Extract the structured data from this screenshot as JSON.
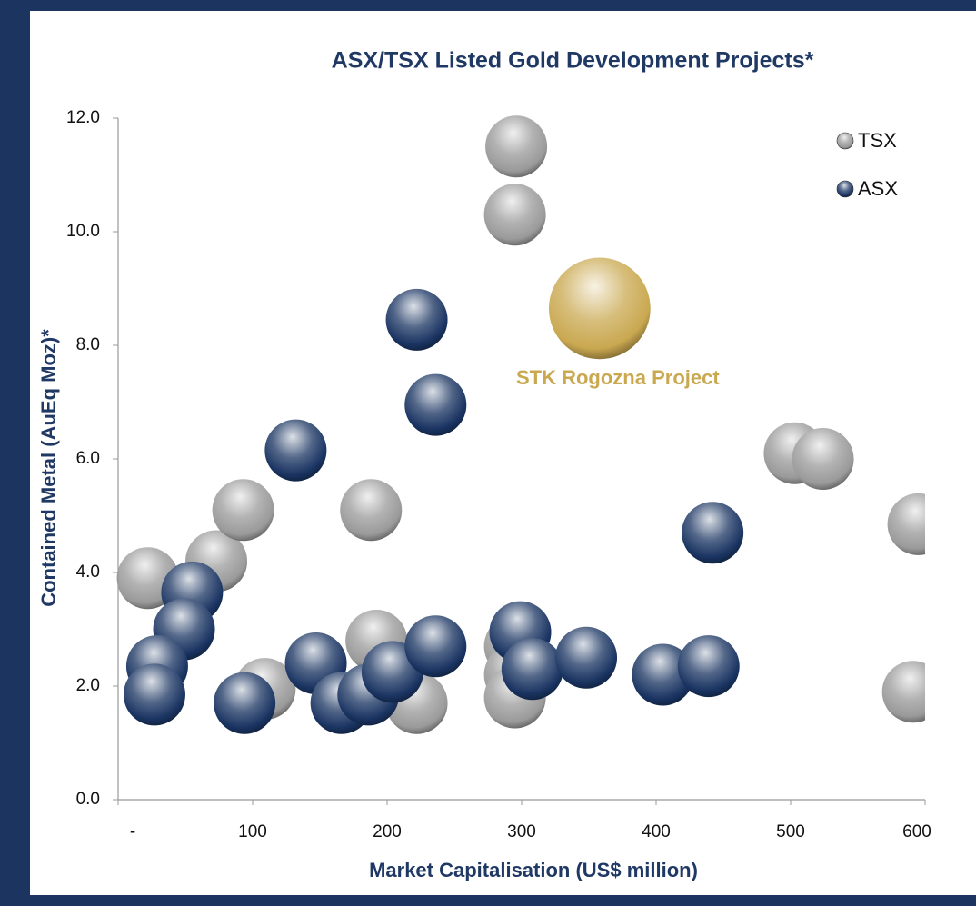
{
  "chart_data": {
    "type": "bubble",
    "title": "ASX/TSX Listed Gold Development Projects*",
    "x_label": "Market Capitalisation (US$ million)",
    "y_label": "Contained Metal (AuEq Moz)*",
    "xlim": [
      0,
      600
    ],
    "ylim": [
      0,
      12
    ],
    "xticks": [
      {
        "value": 0,
        "label": "-"
      },
      100,
      200,
      300,
      400,
      500,
      600
    ],
    "yticks": [
      {
        "value": 0,
        "label": "0.0"
      },
      {
        "value": 2,
        "label": "2.0"
      },
      {
        "value": 4,
        "label": "4.0"
      },
      {
        "value": 6,
        "label": "6.0"
      },
      {
        "value": 8,
        "label": "8.0"
      },
      {
        "value": 10,
        "label": "10.0"
      },
      {
        "value": 12,
        "label": "12.0"
      }
    ],
    "legend": "top-right",
    "series": [
      {
        "name": "TSX",
        "color": "#9a9a9a",
        "x": [
          296,
          295,
          22,
          73,
          93,
          188,
          192,
          109,
          222,
          295,
          295,
          295,
          503,
          524,
          595,
          591
        ],
        "values": [
          11.5,
          10.3,
          3.9,
          4.2,
          5.1,
          5.1,
          2.8,
          1.95,
          1.7,
          2.7,
          2.2,
          1.8,
          6.1,
          6.0,
          4.85,
          1.9
        ],
        "sizes": [
          1,
          1,
          1,
          1,
          1,
          1,
          1,
          1,
          1,
          1,
          1,
          1,
          1,
          1,
          1,
          1
        ]
      },
      {
        "name": "ASX",
        "color": "#1a3462",
        "x": [
          222,
          236,
          132,
          442,
          55,
          49,
          29,
          27,
          94,
          147,
          166,
          186,
          204,
          236,
          299,
          308,
          348,
          405,
          439
        ],
        "values": [
          8.45,
          6.95,
          6.15,
          4.7,
          3.65,
          3.0,
          2.35,
          1.85,
          1.7,
          2.4,
          1.7,
          1.85,
          2.25,
          2.7,
          2.95,
          2.3,
          2.5,
          2.2,
          2.35
        ],
        "sizes": [
          1,
          1,
          1,
          1,
          1,
          1,
          1,
          1,
          1,
          1,
          1,
          1,
          1,
          1,
          1,
          1,
          1,
          1,
          1
        ]
      },
      {
        "name": "STK Rogozna Project",
        "color": "#c9a850",
        "in_legend": false,
        "x": [
          358
        ],
        "values": [
          8.65
        ],
        "sizes": [
          2.7
        ]
      }
    ]
  }
}
